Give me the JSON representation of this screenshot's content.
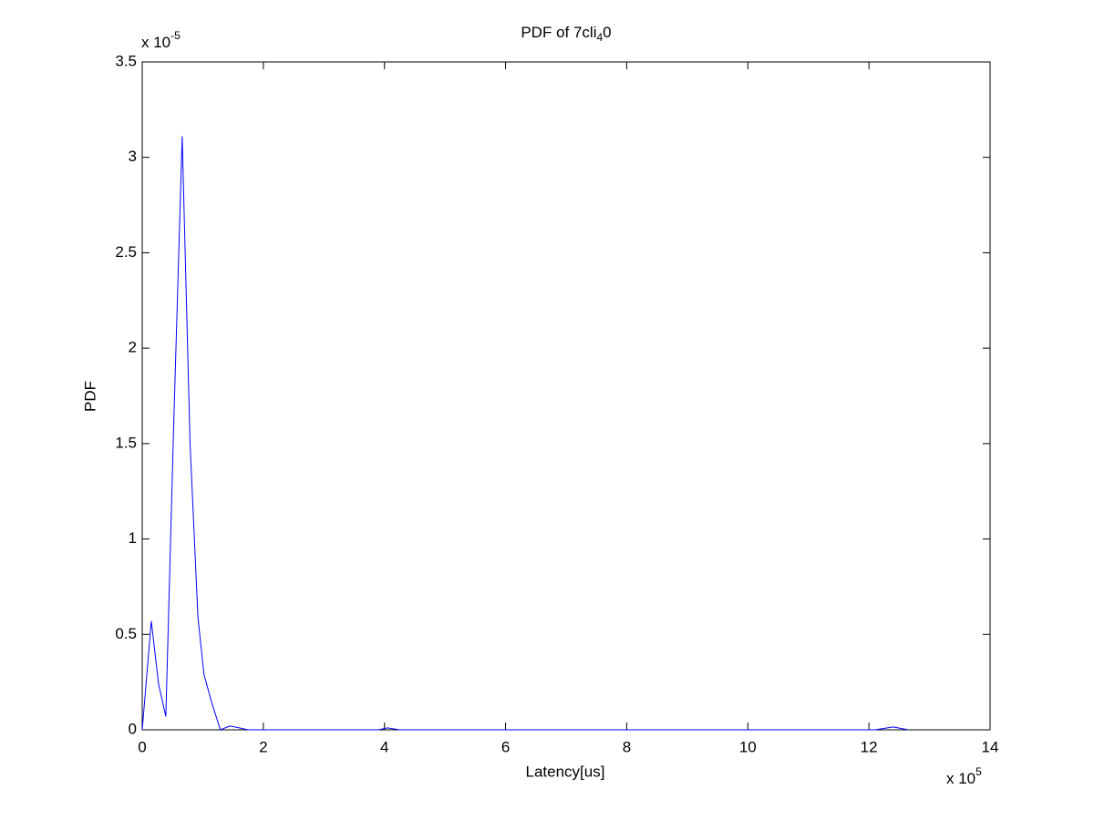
{
  "chart_data": {
    "type": "line",
    "title": [
      "PDF of 7cli",
      "4",
      "0"
    ],
    "xlabel": "Latency[us]",
    "ylabel": "PDF",
    "x_multiplier": {
      "base": "x 10",
      "exp": "5"
    },
    "y_multiplier": {
      "base": "x 10",
      "exp": "-5"
    },
    "xlim": [
      0,
      14
    ],
    "ylim": [
      0,
      3.5
    ],
    "xticks": [
      0,
      2,
      4,
      6,
      8,
      10,
      12,
      14
    ],
    "yticks": [
      0,
      0.5,
      1,
      1.5,
      2,
      2.5,
      3,
      3.5
    ],
    "grid": false,
    "series": [
      {
        "color": "#0000ff",
        "x": [
          0,
          0.15,
          0.27,
          0.39,
          0.52,
          0.66,
          0.79,
          0.92,
          1.02,
          1.15,
          1.29,
          1.45,
          1.6,
          1.75,
          1.9,
          3.9,
          4.05,
          4.25,
          12.1,
          12.4,
          12.65
        ],
        "values": [
          0,
          0.57,
          0.24,
          0.07,
          1.6,
          3.11,
          1.5,
          0.59,
          0.29,
          0.14,
          0,
          0.02,
          0.01,
          0,
          0,
          0,
          0.01,
          0,
          0,
          0.015,
          0
        ]
      }
    ]
  }
}
